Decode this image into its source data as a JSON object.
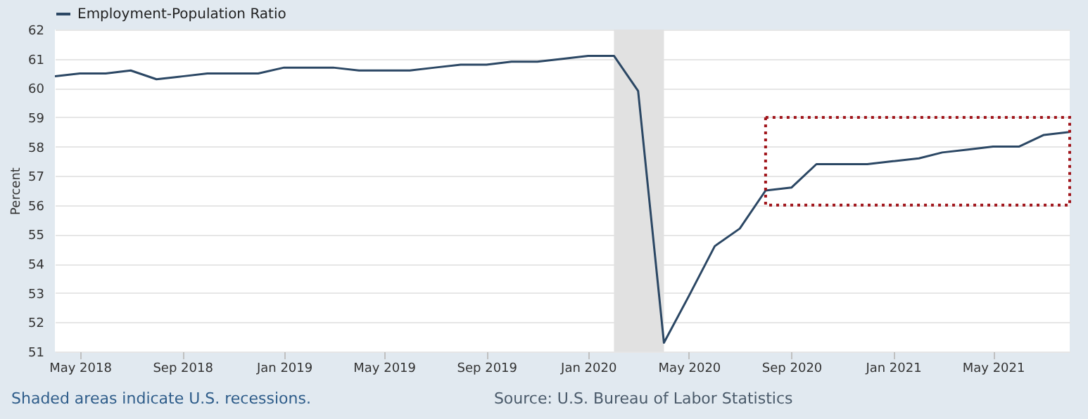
{
  "chart_data": {
    "type": "line",
    "ylabel": "Percent",
    "legend": "top left",
    "grid": "y",
    "x": [
      "2018-04",
      "2018-05",
      "2018-06",
      "2018-07",
      "2018-08",
      "2018-09",
      "2018-10",
      "2018-11",
      "2018-12",
      "2019-01",
      "2019-02",
      "2019-03",
      "2019-04",
      "2019-05",
      "2019-06",
      "2019-07",
      "2019-08",
      "2019-09",
      "2019-10",
      "2019-11",
      "2019-12",
      "2020-01",
      "2020-02",
      "2020-03",
      "2020-04",
      "2020-05",
      "2020-06",
      "2020-07",
      "2020-08",
      "2020-09",
      "2020-10",
      "2020-11",
      "2020-12",
      "2021-01",
      "2021-02",
      "2021-03",
      "2021-04",
      "2021-05",
      "2021-06",
      "2021-07",
      "2021-08"
    ],
    "series": [
      {
        "name": "Employment-Population Ratio",
        "color": "#2b4764",
        "values": [
          60.4,
          60.5,
          60.5,
          60.6,
          60.3,
          60.4,
          60.5,
          60.5,
          60.5,
          60.7,
          60.7,
          60.7,
          60.6,
          60.6,
          60.6,
          60.7,
          60.8,
          60.8,
          60.9,
          60.9,
          61.0,
          61.1,
          61.1,
          59.9,
          51.3,
          52.9,
          54.6,
          55.2,
          56.5,
          56.6,
          57.4,
          57.4,
          57.4,
          57.5,
          57.6,
          57.8,
          57.9,
          58.0,
          58.0,
          58.4,
          58.5
        ]
      }
    ],
    "xlim": [
      "2018-04",
      "2021-08"
    ],
    "xticks": [
      {
        "value": "2018-05",
        "label": "May 2018"
      },
      {
        "value": "2018-09",
        "label": "Sep 2018"
      },
      {
        "value": "2019-01",
        "label": "Jan 2019"
      },
      {
        "value": "2019-05",
        "label": "May 2019"
      },
      {
        "value": "2019-09",
        "label": "Sep 2019"
      },
      {
        "value": "2020-01",
        "label": "Jan 2020"
      },
      {
        "value": "2020-05",
        "label": "May 2020"
      },
      {
        "value": "2020-09",
        "label": "Sep 2020"
      },
      {
        "value": "2021-01",
        "label": "Jan 2021"
      },
      {
        "value": "2021-05",
        "label": "May 2021"
      }
    ],
    "ylim": [
      51,
      62
    ],
    "yticks": [
      51,
      52,
      53,
      54,
      55,
      56,
      57,
      58,
      59,
      60,
      61,
      62
    ],
    "bands": [
      {
        "axis": "x",
        "from": "2020-02",
        "to": "2020-04",
        "color": "#e1e1e1"
      }
    ],
    "annotations": [
      "Shaded areas indicate U.S. recessions.",
      "Source: U.S. Bureau of Labor Statistics"
    ]
  }
}
